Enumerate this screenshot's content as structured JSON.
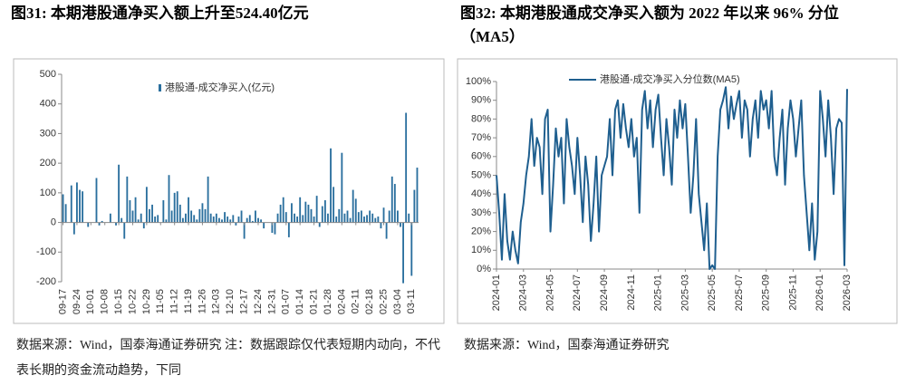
{
  "chart_data": [
    {
      "type": "bar",
      "title": "图31:  本期港股通净买入额上升至524.40亿元",
      "source": "数据来源：Wind，国泰海通证券研究  注：数据跟踪仅代表短期内动向，不代表长期的资金流动趋势，下同",
      "categories": [
        "09-17",
        null,
        null,
        null,
        null,
        "09-24",
        null,
        null,
        null,
        null,
        "10-01",
        null,
        null,
        null,
        null,
        "10-08",
        null,
        null,
        null,
        null,
        "10-15",
        null,
        null,
        null,
        null,
        "10-22",
        null,
        null,
        null,
        null,
        "10-29",
        null,
        null,
        null,
        null,
        "11-05",
        null,
        null,
        null,
        null,
        "11-12",
        null,
        null,
        null,
        null,
        "11-19",
        null,
        null,
        null,
        null,
        "11-26",
        null,
        null,
        null,
        null,
        "12-03",
        null,
        null,
        null,
        null,
        "12-10",
        null,
        null,
        null,
        null,
        "12-17",
        null,
        null,
        null,
        null,
        "12-24",
        null,
        null,
        null,
        null,
        "12-31",
        null,
        null,
        null,
        null,
        "01-07",
        null,
        null,
        null,
        null,
        "01-14",
        null,
        null,
        null,
        null,
        "01-21",
        null,
        null,
        null,
        null,
        "01-28",
        null,
        null,
        null,
        null,
        "02-04",
        null,
        null,
        null,
        null,
        "02-11",
        null,
        null,
        null,
        null,
        "02-18",
        null,
        null,
        null,
        null,
        "02-25",
        null,
        null,
        null,
        null,
        "03-04",
        null,
        null,
        null,
        null,
        "03-11",
        null,
        null
      ],
      "series": [
        {
          "name": "港股通-成交净买入(亿元)",
          "color": "#2a6f9e",
          "values": [
            95,
            62,
            0,
            125,
            -40,
            135,
            110,
            105,
            0,
            -15,
            0,
            0,
            150,
            -10,
            5,
            0,
            0,
            30,
            0,
            -10,
            195,
            15,
            -55,
            155,
            75,
            40,
            85,
            10,
            30,
            -20,
            120,
            45,
            60,
            20,
            25,
            0,
            75,
            10,
            160,
            40,
            100,
            105,
            60,
            15,
            30,
            85,
            40,
            25,
            10,
            45,
            65,
            45,
            155,
            30,
            20,
            30,
            15,
            10,
            35,
            20,
            10,
            25,
            -10,
            20,
            40,
            -55,
            15,
            25,
            5,
            40,
            15,
            10,
            -20,
            0,
            0,
            -35,
            -40,
            30,
            60,
            85,
            35,
            -50,
            65,
            30,
            20,
            85,
            25,
            70,
            60,
            45,
            20,
            90,
            -15,
            55,
            75,
            30,
            250,
            120,
            20,
            45,
            235,
            30,
            40,
            15,
            110,
            80,
            35,
            40,
            20,
            25,
            40,
            30,
            15,
            20,
            -20,
            50,
            -55,
            40,
            155,
            130,
            40,
            -15,
            -205,
            370,
            30,
            -180,
            110,
            185
          ]
        }
      ],
      "ylim": [
        -200,
        500
      ],
      "yticks": [
        -200,
        -100,
        0,
        100,
        200,
        300,
        400,
        500
      ]
    },
    {
      "type": "line",
      "title": "图32:  本期港股通成交净买入额为 2022 年以来 96% 分位（MA5）",
      "source": "数据来源：Wind，国泰海通证券研究",
      "categories": [
        "2024-01",
        null,
        null,
        null,
        null,
        null,
        null,
        null,
        null,
        null,
        "2024-03",
        null,
        null,
        null,
        null,
        null,
        null,
        null,
        null,
        null,
        "2024-05",
        null,
        null,
        null,
        null,
        null,
        null,
        null,
        null,
        null,
        "2024-07",
        null,
        null,
        null,
        null,
        null,
        null,
        null,
        null,
        null,
        "2024-09",
        null,
        null,
        null,
        null,
        null,
        null,
        null,
        null,
        null,
        "2024-11",
        null,
        null,
        null,
        null,
        null,
        null,
        null,
        null,
        null,
        "2025-01",
        null,
        null,
        null,
        null,
        null,
        null,
        null,
        null,
        null,
        "2025-03",
        null,
        null,
        null,
        null,
        null,
        null,
        null,
        null,
        null,
        "2025-05",
        null,
        null,
        null,
        null,
        null,
        null,
        null,
        null,
        null,
        "2025-07",
        null,
        null,
        null,
        null,
        null,
        null,
        null,
        null,
        null,
        "2025-09",
        null,
        null,
        null,
        null,
        null,
        null,
        null,
        null,
        null,
        "2025-11",
        null,
        null,
        null,
        null,
        null,
        null,
        null,
        null,
        null,
        "2026-01",
        null,
        null,
        null,
        null,
        null,
        null,
        null,
        null,
        null,
        "2026-03"
      ],
      "series": [
        {
          "name": "港股通-成交净买入分位数(MA5)",
          "color": "#1f5f8f",
          "values": [
            50,
            30,
            5,
            40,
            15,
            5,
            20,
            10,
            3,
            25,
            35,
            50,
            60,
            80,
            55,
            70,
            65,
            40,
            80,
            85,
            20,
            45,
            75,
            60,
            70,
            35,
            80,
            65,
            55,
            40,
            70,
            50,
            25,
            60,
            45,
            15,
            35,
            60,
            20,
            50,
            55,
            60,
            80,
            50,
            85,
            90,
            70,
            88,
            75,
            65,
            80,
            60,
            70,
            30,
            85,
            95,
            75,
            90,
            65,
            85,
            93,
            70,
            50,
            80,
            65,
            45,
            85,
            70,
            90,
            75,
            88,
            60,
            30,
            50,
            80,
            40,
            25,
            10,
            35,
            0,
            2,
            0,
            60,
            85,
            90,
            97,
            75,
            92,
            80,
            88,
            95,
            70,
            90,
            85,
            60,
            80,
            90,
            70,
            95,
            85,
            90,
            75,
            95,
            60,
            50,
            70,
            85,
            45,
            75,
            90,
            80,
            60,
            75,
            90,
            50,
            30,
            10,
            35,
            5,
            20,
            95,
            80,
            60,
            90,
            70,
            40,
            75,
            80,
            78,
            2,
            96
          ]
        }
      ],
      "ylim": [
        0,
        100
      ],
      "yticks": [
        {
          "value": 0,
          "label": "0%"
        },
        {
          "value": 10,
          "label": "10%"
        },
        {
          "value": 20,
          "label": "20%"
        },
        {
          "value": 30,
          "label": "30%"
        },
        {
          "value": 40,
          "label": "40%"
        },
        {
          "value": 50,
          "label": "50%"
        },
        {
          "value": 60,
          "label": "60%"
        },
        {
          "value": 70,
          "label": "70%"
        },
        {
          "value": 80,
          "label": "80%"
        },
        {
          "value": 90,
          "label": "90%"
        },
        {
          "value": 100,
          "label": "100%"
        }
      ]
    }
  ]
}
